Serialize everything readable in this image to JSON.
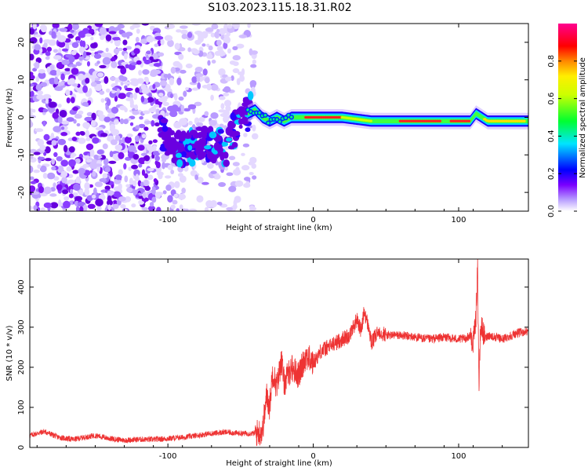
{
  "figure": {
    "title": "S103.2023.115.18.31.R02"
  },
  "chart_data": [
    {
      "type": "heatmap",
      "xlabel": "Height of straight line (km)",
      "ylabel": "Frequency (Hz)",
      "xlim": [
        -195,
        148
      ],
      "ylim": [
        -25,
        25
      ],
      "xticks": [
        -100,
        0,
        100
      ],
      "xtick_labels": [
        "-100",
        "0",
        "100"
      ],
      "yticks": [
        -20,
        -10,
        0,
        10,
        20
      ],
      "ytick_labels": [
        "-20",
        "-10",
        "0",
        "10",
        "20"
      ],
      "colorbar": {
        "label": "Normalized spectral amplitude",
        "range": [
          0,
          1
        ],
        "ticks": [
          0.0,
          0.2,
          0.4,
          0.6,
          0.8
        ],
        "tick_labels": [
          "0.0",
          "0.2",
          "0.4",
          "0.6",
          "0.8"
        ],
        "colormap": [
          "#ffffff",
          "#7a00ff",
          "#0000ff",
          "#00e5ff",
          "#00ff00",
          "#ffff00",
          "#ff0000",
          "#ff0090"
        ]
      },
      "ridge": {
        "description_values": "dominant frequency ridge (Hz) vs height (km)",
        "x": [
          -103,
          -95,
          -85,
          -75,
          -65,
          -60,
          -55,
          -50,
          -45,
          -40,
          -35,
          -30,
          -25,
          -20,
          -15,
          -10,
          0,
          20,
          40,
          60,
          80,
          90,
          100,
          108,
          112,
          120,
          130,
          140,
          148
        ],
        "y": [
          -5,
          -8,
          -8,
          -7,
          -7,
          -9,
          -4,
          -1,
          1,
          2,
          0,
          -1,
          0,
          -1,
          0,
          0,
          0,
          0,
          -1,
          -1,
          -1,
          -1,
          -1,
          -1,
          1,
          -1,
          -1,
          -1,
          -1
        ]
      }
    },
    {
      "type": "line",
      "xlabel": "Height of straight line (km)",
      "ylabel": "SNR (10 * v/v)",
      "xlim": [
        -195,
        148
      ],
      "ylim": [
        0,
        470
      ],
      "xticks": [
        -100,
        0,
        100
      ],
      "xtick_labels": [
        "-100",
        "0",
        "100"
      ],
      "yticks": [
        0,
        100,
        200,
        300,
        400
      ],
      "ytick_labels": [
        "0",
        "100",
        "200",
        "300",
        "400"
      ],
      "color": "#ee3333",
      "x": [
        -195,
        -185,
        -175,
        -165,
        -150,
        -140,
        -130,
        -120,
        -110,
        -100,
        -90,
        -80,
        -70,
        -60,
        -50,
        -40,
        -35,
        -32,
        -30,
        -28,
        -25,
        -22,
        -20,
        -15,
        -10,
        -5,
        0,
        5,
        10,
        15,
        20,
        25,
        30,
        33,
        35,
        38,
        40,
        45,
        50,
        60,
        70,
        80,
        90,
        100,
        105,
        108,
        110,
        112,
        113,
        114,
        115,
        116,
        118,
        120,
        125,
        130,
        140,
        148
      ],
      "y": [
        30,
        40,
        25,
        20,
        30,
        22,
        18,
        20,
        20,
        22,
        25,
        30,
        35,
        38,
        35,
        35,
        40,
        130,
        100,
        190,
        150,
        220,
        160,
        200,
        180,
        230,
        210,
        240,
        250,
        260,
        270,
        280,
        320,
        290,
        340,
        300,
        260,
        290,
        280,
        280,
        275,
        270,
        275,
        270,
        272,
        280,
        260,
        330,
        460,
        150,
        290,
        300,
        270,
        280,
        275,
        270,
        285,
        290
      ]
    }
  ]
}
